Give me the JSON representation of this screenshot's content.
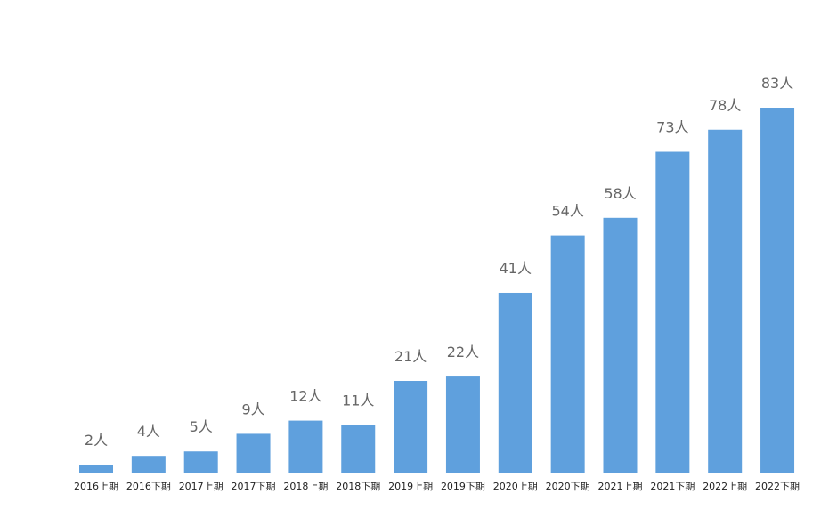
{
  "chart_data": {
    "type": "bar",
    "title": "",
    "xlabel": "",
    "ylabel": "",
    "categories": [
      "2016上期",
      "2016下期",
      "2017上期",
      "2017下期",
      "2018上期",
      "2018下期",
      "2019上期",
      "2019下期",
      "2020上期",
      "2020下期",
      "2021上期",
      "2021下期",
      "2022上期",
      "2022下期"
    ],
    "values": [
      2,
      4,
      5,
      9,
      12,
      11,
      21,
      22,
      41,
      54,
      58,
      73,
      78,
      83
    ],
    "data_labels": [
      "2人",
      "4人",
      "5人",
      "9人",
      "12人",
      "11人",
      "21人",
      "22人",
      "41人",
      "54人",
      "58人",
      "73人",
      "78人",
      "83人"
    ],
    "ylim": [
      0,
      83
    ],
    "grid": false,
    "bar_color": "#5fa0dd",
    "label_color": "#666666"
  }
}
